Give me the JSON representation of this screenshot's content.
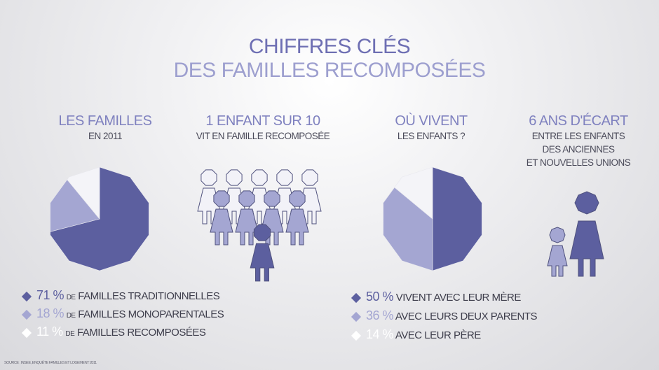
{
  "title": {
    "line1": "CHIFFRES CLÉS",
    "line2": "DES FAMILLES RECOMPOSÉES"
  },
  "colors": {
    "dark": "#5c5f9f",
    "medium": "#a4a6d2",
    "light": "#f4f4f8",
    "outline": "#50527e"
  },
  "sections": {
    "familles": {
      "heading": "LES FAMILLES",
      "sub": "EN 2011"
    },
    "enfant": {
      "heading": "1 ENFANT SUR 10",
      "sub": "VIT EN FAMILLE RECOMPOSÉE"
    },
    "vivent": {
      "heading": "OÙ VIVENT",
      "sub": "LES ENFANTS ?"
    },
    "ecart": {
      "heading": "6 ANS D'ÉCART",
      "sub1": "ENTRE LES ENFANTS",
      "sub2": "DES ANCIENNES",
      "sub3": "ET NOUVELLES UNIONS"
    }
  },
  "legend_familles": [
    {
      "pct": "71 %",
      "prefix": "DE",
      "label": "FAMILLES TRADITIONNELLES"
    },
    {
      "pct": "18 %",
      "prefix": "DE",
      "label": "FAMILLES MONOPARENTALES"
    },
    {
      "pct": "11 %",
      "prefix": "DE",
      "label": "FAMILLES RECOMPOSÉES"
    }
  ],
  "legend_vivent": [
    {
      "pct": "50 %",
      "label": "VIVENT AVEC LEUR MÈRE"
    },
    {
      "pct": "36 %",
      "label": "AVEC LEURS DEUX PARENTS"
    },
    {
      "pct": "14 %",
      "label": "AVEC LEUR PÈRE"
    }
  ],
  "chart_data": [
    {
      "type": "pie",
      "categories": [
        "FAMILLES TRADITIONNELLES",
        "FAMILLES MONOPARENTALES",
        "FAMILLES RECOMPOSÉES"
      ],
      "values": [
        71,
        18,
        11
      ]
    },
    {
      "type": "pie",
      "categories": [
        "VIVENT AVEC LEUR MÈRE",
        "AVEC LEURS DEUX PARENTS",
        "AVEC LEUR PÈRE"
      ],
      "values": [
        50,
        36,
        14
      ]
    }
  ],
  "pictogram": {
    "total": 10,
    "highlighted": 1
  },
  "source": "SOURCE : INSEE, ENQUÊTE FAMILLES ET LOGEMENT 2011"
}
